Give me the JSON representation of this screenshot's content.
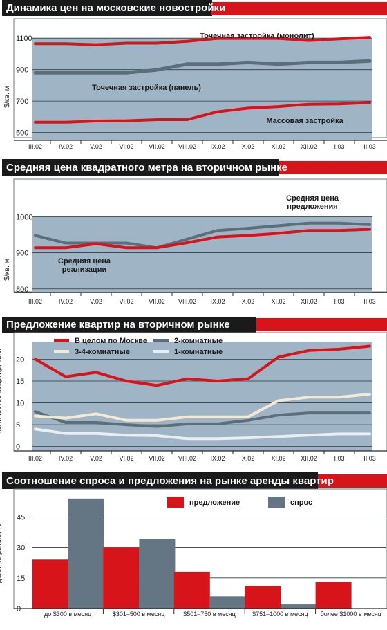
{
  "colors": {
    "header_bg": "#1a1a1a",
    "accent_red": "#d7141a",
    "area_fill": "#9fb4c4",
    "series_blue": "#5d6e7b",
    "grid": "#2f3a42",
    "line_light": "#f2ead6",
    "bar_red": "#d7141a",
    "bar_blue": "#647683"
  },
  "chart_data": [
    {
      "type": "line",
      "title": "Динамика цен на московские новостройки",
      "ylabel": "$/кв. м",
      "ylim": [
        450,
        1180
      ],
      "yticks": [
        "1100",
        "900",
        "700",
        "500"
      ],
      "ytick_values": [
        1100,
        900,
        700,
        500
      ],
      "categories": [
        "III.02",
        "IV.02",
        "V.02",
        "VI.02",
        "VII.02",
        "VIII.02",
        "IX.02",
        "X.02",
        "XI.02",
        "XII.02",
        "I.03",
        "II.03"
      ],
      "series": [
        {
          "name": "Точечная застройка (монолит)",
          "color": "#d7141a",
          "values": [
            1065,
            1065,
            1058,
            1068,
            1068,
            1080,
            1098,
            1098,
            1098,
            1085,
            1095,
            1105
          ]
        },
        {
          "name": "Точечная застройка (панель)",
          "color": "#5d6e7b",
          "values": [
            880,
            880,
            880,
            880,
            898,
            935,
            935,
            945,
            935,
            945,
            945,
            955
          ]
        },
        {
          "name": "Массовая застройка",
          "color": "#d7141a",
          "values": [
            565,
            565,
            573,
            575,
            582,
            582,
            632,
            655,
            665,
            680,
            682,
            690
          ]
        }
      ]
    },
    {
      "type": "line",
      "title": "Средняя цена квадратного метра на вторичном рынке",
      "ylabel": "$/кв. м",
      "ylim": [
        790,
        1085
      ],
      "yticks": [
        "1000",
        "900",
        "800"
      ],
      "ytick_values": [
        1000,
        900,
        800
      ],
      "categories": [
        "III.02",
        "IV.02",
        "V.02",
        "VI.02",
        "VII.02",
        "VIII.02",
        "IX.02",
        "X.02",
        "XI.02",
        "XII.02",
        "I.03",
        "II.03"
      ],
      "series": [
        {
          "name": "Средняя цена предложения",
          "color": "#5d6e7b",
          "values": [
            948,
            927,
            927,
            927,
            914,
            938,
            962,
            968,
            975,
            982,
            982,
            978
          ]
        },
        {
          "name": "Средняя цена реализации",
          "color": "#d7141a",
          "values": [
            914,
            914,
            925,
            914,
            914,
            928,
            944,
            948,
            954,
            962,
            962,
            965
          ]
        }
      ]
    },
    {
      "type": "line",
      "title": "Предложение квартир на вторичном рынке",
      "ylabel": "количество квартир, тыс.",
      "ylim": [
        -1,
        24.5
      ],
      "yticks": [
        "20",
        "15",
        "10",
        "5",
        "0"
      ],
      "ytick_values": [
        20,
        15,
        10,
        5,
        0
      ],
      "categories": [
        "III.02",
        "IV.02",
        "V.02",
        "VI.02",
        "VII.02",
        "VIII.02",
        "IX.02",
        "X.02",
        "XI.02",
        "XII.02",
        "I.03",
        "II.03"
      ],
      "series": [
        {
          "name": "В целом по Москве",
          "color": "#d7141a",
          "values": [
            20,
            16,
            17,
            15,
            14,
            15.5,
            15,
            15.5,
            20.5,
            22,
            22.3,
            23
          ]
        },
        {
          "name": "2-комнатные",
          "color": "#5d6e7b",
          "values": [
            8,
            5.5,
            5.5,
            5,
            4.6,
            5.2,
            5.2,
            6,
            7.2,
            7.7,
            7.7,
            7.7
          ]
        },
        {
          "name": "3-4-комнатные",
          "color": "#f2ead6",
          "values": [
            7,
            6.5,
            7.5,
            6,
            6,
            6.8,
            6.8,
            6.8,
            10.5,
            11.3,
            11.3,
            12
          ]
        },
        {
          "name": "1-комнатные",
          "color": "#e8eef2",
          "values": [
            4,
            3,
            3,
            2.6,
            2.5,
            1.8,
            1.8,
            2,
            2.3,
            2.6,
            2.9,
            2.9
          ]
        }
      ]
    },
    {
      "type": "bar",
      "title": "Соотношение спроса и предложения на рынке аренды квартир",
      "ylabel": "доля на рынке, %",
      "ylim": [
        0,
        57
      ],
      "yticks": [
        "45",
        "30",
        "15",
        "0"
      ],
      "ytick_values": [
        45,
        30,
        15,
        0
      ],
      "categories": [
        "до $300 в месяц",
        "$301–500 в месяц",
        "$501–750 в месяц",
        "$751–1000 в месяц",
        "более $1000 в месяц"
      ],
      "series": [
        {
          "name": "предложение",
          "color": "#d7141a",
          "values": [
            24,
            30,
            18,
            11,
            13
          ]
        },
        {
          "name": "спрос",
          "color": "#647683",
          "values": [
            54,
            34,
            6,
            2,
            0
          ]
        }
      ]
    }
  ]
}
